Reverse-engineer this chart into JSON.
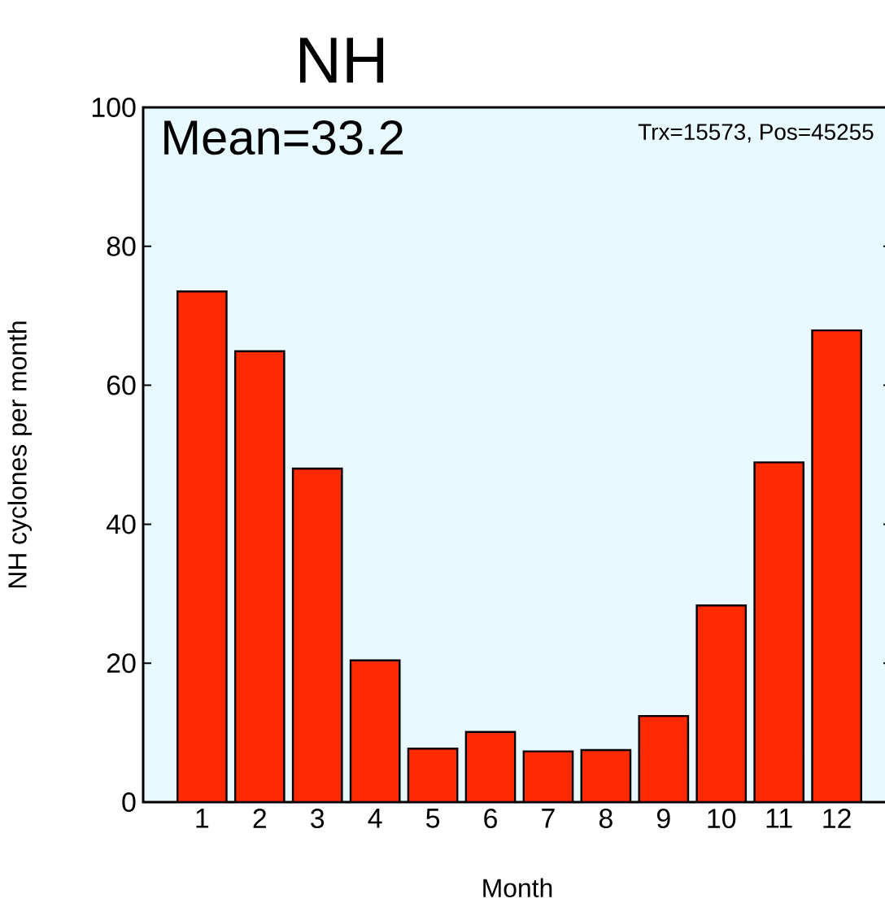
{
  "chart_data": {
    "type": "bar",
    "title": "NH",
    "xlabel": "Month",
    "ylabel": "NH cyclones per month",
    "categories": [
      "1",
      "2",
      "3",
      "4",
      "5",
      "6",
      "7",
      "8",
      "9",
      "10",
      "11",
      "12"
    ],
    "values": [
      73.5,
      64.9,
      48.0,
      20.4,
      7.7,
      10.1,
      7.3,
      7.5,
      12.4,
      28.3,
      48.9,
      67.9
    ],
    "color": "#ff2a00",
    "ylim": [
      0,
      100
    ],
    "yticks": [
      0,
      20,
      40,
      60,
      80,
      100
    ],
    "annotations": [
      "Mean=33.2",
      "Trx=15573, Pos=45255"
    ]
  }
}
